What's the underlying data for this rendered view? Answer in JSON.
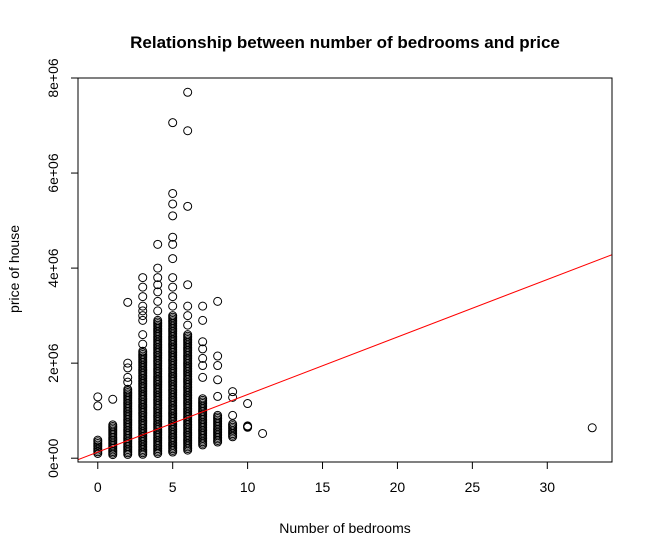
{
  "chart_data": {
    "type": "scatter",
    "title": "Relationship between number of bedrooms and price",
    "xlabel": "Number of bedrooms",
    "ylabel": "price of house",
    "xlim": [
      -1.32,
      34.32
    ],
    "ylim": [
      -80000.0,
      8000000.0
    ],
    "x_ticks": [
      0,
      5,
      10,
      15,
      20,
      25,
      30
    ],
    "x_tick_labels": [
      "0",
      "5",
      "10",
      "15",
      "20",
      "25",
      "30"
    ],
    "y_ticks": [
      0,
      2000000,
      4000000,
      6000000,
      8000000
    ],
    "y_tick_labels": [
      "0e+00",
      "2e+06",
      "4e+06",
      "6e+06",
      "8e+06"
    ],
    "grid": false,
    "marker": "open-circle",
    "point_color": "#000000",
    "regression_line": {
      "color": "#ff0000",
      "intercept": 130000,
      "slope": 121000
    },
    "point_columns": [
      {
        "x": 0,
        "dense_range": [
          100000,
          380000
        ],
        "outliers": [
          1100000,
          1290000
        ]
      },
      {
        "x": 1,
        "dense_range": [
          75000,
          700000
        ],
        "outliers": [
          1240000
        ]
      },
      {
        "x": 2,
        "dense_range": [
          80000,
          1450000
        ],
        "outliers": [
          1600000,
          1700000,
          1900000,
          2000000,
          3280000
        ]
      },
      {
        "x": 3,
        "dense_range": [
          82000,
          2250000
        ],
        "outliers": [
          2400000,
          2600000,
          2900000,
          3000000,
          3100000,
          3200000,
          3400000,
          3600000,
          3800000
        ]
      },
      {
        "x": 4,
        "dense_range": [
          100000,
          2900000
        ],
        "outliers": [
          3100000,
          3300000,
          3500000,
          3650000,
          3800000,
          4000000,
          4500000
        ]
      },
      {
        "x": 5,
        "dense_range": [
          130000,
          3000000
        ],
        "outliers": [
          3200000,
          3400000,
          3600000,
          3800000,
          4200000,
          4500000,
          4650000,
          5100000,
          5350000,
          5570000,
          7060000
        ]
      },
      {
        "x": 6,
        "dense_range": [
          170000,
          2600000
        ],
        "outliers": [
          2800000,
          3000000,
          3200000,
          3650000,
          5300000,
          6890000,
          7700000
        ]
      },
      {
        "x": 7,
        "dense_range": [
          280000,
          1250000
        ],
        "outliers": [
          1700000,
          1950000,
          2100000,
          2300000,
          2450000,
          2900000,
          3200000
        ]
      },
      {
        "x": 8,
        "dense_range": [
          340000,
          900000
        ],
        "outliers": [
          1300000,
          1650000,
          1950000,
          2150000,
          3300000
        ]
      },
      {
        "x": 9,
        "dense_range": [
          450000,
          720000
        ],
        "outliers": [
          900000,
          1280000,
          1400000
        ]
      },
      {
        "x": 10,
        "dense_range": [
          650000,
          680000
        ],
        "outliers": [
          1150000
        ]
      },
      {
        "x": 11,
        "dense_range": [
          520000,
          520000
        ],
        "outliers": []
      },
      {
        "x": 33,
        "dense_range": [
          640000,
          640000
        ],
        "outliers": []
      }
    ]
  }
}
